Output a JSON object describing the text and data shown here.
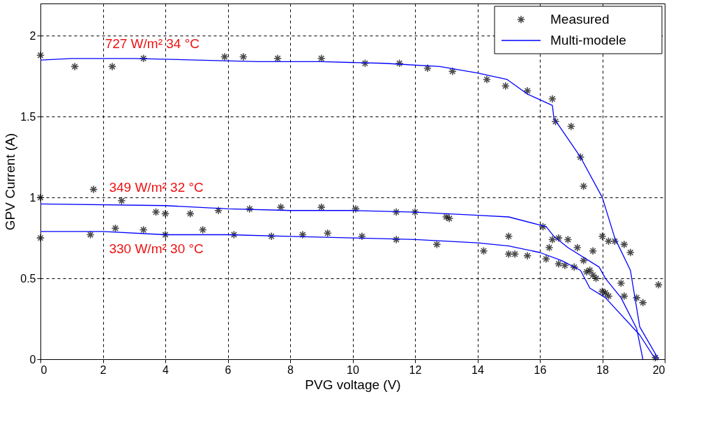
{
  "chart_data": {
    "type": "line",
    "xlabel": "PVG voltage (V)",
    "ylabel": "GPV Current (A)",
    "xlim": [
      0,
      20
    ],
    "xticks": [
      0,
      2,
      4,
      6,
      8,
      10,
      12,
      14,
      16,
      18,
      20
    ],
    "ylim": [
      0,
      2.2
    ],
    "yticks": [
      0,
      0.5,
      1,
      1.5,
      2
    ],
    "grid": true,
    "legend": "top right",
    "line_style": "solid",
    "annotations": [
      "727 W/m² 34 °C",
      "349 W/m² 32 °C",
      "330 W/m² 30 °C"
    ],
    "series": [
      {
        "name": "Measured",
        "type": "scatter",
        "marker": "cross",
        "color": "#000000",
        "x": [
          0,
          1.1,
          2.3,
          3.3,
          5.9,
          6.5,
          7.6,
          9,
          10.4,
          11.5,
          12.4,
          13.2,
          14.3,
          14.9,
          15.6,
          16.4,
          16.5,
          17,
          17.3,
          17.4,
          0,
          1.7,
          2.6,
          3.7,
          4,
          4.8,
          5.7,
          6.7,
          7.7,
          9,
          10.1,
          11.4,
          12,
          13,
          13.1,
          16.1,
          16.4,
          16.6,
          16.9,
          16.3,
          17.2,
          17.7,
          17.4,
          18,
          18.2,
          18.4,
          18.7,
          18.9,
          0,
          1.6,
          2.4,
          3.3,
          4,
          5.2,
          6.2,
          7.4,
          8.4,
          9.2,
          10.3,
          11.4,
          12.7,
          15,
          14.2,
          15,
          15.2,
          15.6,
          16.2,
          16.6,
          16.8,
          17.1,
          17.5,
          17.6,
          17.7,
          17.8,
          18,
          18.1,
          18.2,
          18.6,
          18.7,
          19.1,
          19.3,
          19.8,
          19.7
        ],
        "values": [
          1.88,
          1.81,
          1.81,
          1.86,
          1.87,
          1.87,
          1.86,
          1.86,
          1.83,
          1.83,
          1.8,
          1.78,
          1.73,
          1.69,
          1.66,
          1.61,
          1.47,
          1.44,
          1.25,
          1.07,
          1.0,
          1.05,
          0.98,
          0.91,
          0.9,
          0.9,
          0.92,
          0.93,
          0.94,
          0.94,
          0.93,
          0.91,
          0.91,
          0.88,
          0.87,
          0.82,
          0.74,
          0.75,
          0.74,
          0.69,
          0.69,
          0.67,
          0.61,
          0.76,
          0.73,
          0.73,
          0.71,
          0.66,
          0.75,
          0.77,
          0.81,
          0.8,
          0.77,
          0.8,
          0.77,
          0.76,
          0.77,
          0.78,
          0.76,
          0.74,
          0.71,
          0.76,
          0.67,
          0.65,
          0.65,
          0.64,
          0.62,
          0.59,
          0.58,
          0.57,
          0.54,
          0.55,
          0.52,
          0.5,
          0.42,
          0.41,
          0.39,
          0.47,
          0.39,
          0.38,
          0.35,
          0.46,
          0.01
        ]
      },
      {
        "name": "Multi-modele",
        "type": "line",
        "color": "#0000ff",
        "x": [
          0,
          1,
          3,
          5,
          7,
          9,
          11,
          12.8,
          14,
          14.95,
          15.6,
          16.4,
          16.45,
          17.3,
          18,
          18.4,
          18.9,
          19.2,
          19.8
        ],
        "values": [
          1.85,
          1.86,
          1.86,
          1.85,
          1.84,
          1.84,
          1.83,
          1.81,
          1.77,
          1.73,
          1.64,
          1.57,
          1.49,
          1.25,
          1.0,
          0.75,
          0.55,
          0.2,
          0.0
        ]
      },
      {
        "type": "line",
        "color": "#0000ff",
        "x": [
          0,
          4,
          6,
          8,
          10,
          12,
          14,
          15,
          16,
          16.2,
          16.45,
          16.9,
          17.9,
          18.1,
          18.6,
          19.1,
          19.3
        ],
        "values": [
          0.96,
          0.95,
          0.93,
          0.92,
          0.92,
          0.91,
          0.89,
          0.88,
          0.83,
          0.82,
          0.76,
          0.69,
          0.57,
          0.5,
          0.38,
          0.19,
          0.0
        ]
      },
      {
        "type": "line",
        "color": "#0000ff",
        "x": [
          0,
          2,
          4,
          6,
          8,
          10,
          12,
          14,
          15,
          16,
          16.7,
          17.3,
          17.6,
          18.1,
          19.2,
          19.7
        ],
        "values": [
          0.79,
          0.79,
          0.77,
          0.77,
          0.76,
          0.75,
          0.74,
          0.72,
          0.7,
          0.66,
          0.61,
          0.55,
          0.44,
          0.38,
          0.15,
          0.0
        ]
      }
    ]
  }
}
